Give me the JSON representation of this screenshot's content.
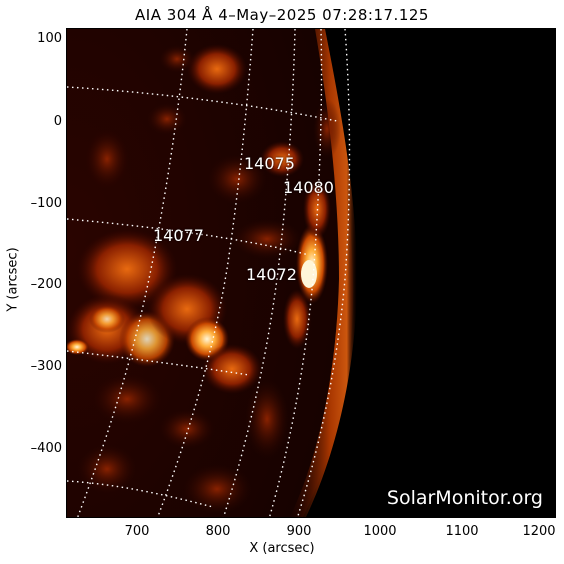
{
  "title": "AIA 304 Å  4–May–2025 07:28:17.125",
  "xlabel": "X (arcsec)",
  "ylabel": "Y (arcsec)",
  "xticks": [
    "700",
    "800",
    "900",
    "1000",
    "1100",
    "1200"
  ],
  "yticks": [
    "100",
    "0",
    "–100",
    "–200",
    "–300",
    "–400"
  ],
  "regions": [
    "14075",
    "14080",
    "14077",
    "14072"
  ],
  "watermark": "SolarMonitor.org",
  "colors": {
    "background": "#000000",
    "chromosphere_dim": "#5a0e00",
    "chromosphere_mid": "#b23a00",
    "chromosphere_bright": "#ff9a2a",
    "core": "#fff4d0"
  }
}
